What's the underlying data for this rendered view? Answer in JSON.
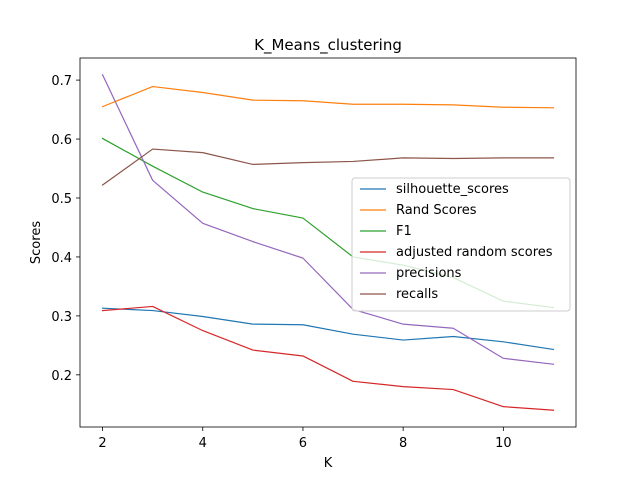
{
  "chart_data": {
    "type": "line",
    "title": "K_Means_clustering",
    "xlabel": "K",
    "ylabel": "Scores",
    "xlim": [
      1.55,
      11.45
    ],
    "ylim": [
      0.1115,
      0.7375
    ],
    "xticks": [
      2,
      4,
      6,
      8,
      10
    ],
    "yticks": [
      0.2,
      0.3,
      0.4,
      0.5,
      0.6,
      0.7
    ],
    "xtick_labels": [
      "2",
      "4",
      "6",
      "8",
      "10"
    ],
    "ytick_labels": [
      "0.2",
      "0.3",
      "0.4",
      "0.5",
      "0.6",
      "0.7"
    ],
    "grid": false,
    "legend_position": "center-right",
    "x": [
      2,
      3,
      4,
      5,
      6,
      7,
      8,
      9,
      10,
      11
    ],
    "series": [
      {
        "name": "silhouette_scores",
        "color": "#1f77b4",
        "values": [
          0.313,
          0.309,
          0.299,
          0.286,
          0.285,
          0.269,
          0.259,
          0.265,
          0.256,
          0.243
        ]
      },
      {
        "name": "Rand Scores",
        "color": "#ff7f0e",
        "values": [
          0.655,
          0.689,
          0.679,
          0.666,
          0.665,
          0.659,
          0.659,
          0.658,
          0.654,
          0.653
        ]
      },
      {
        "name": "F1",
        "color": "#2ca02c",
        "values": [
          0.601,
          0.554,
          0.51,
          0.482,
          0.466,
          0.4,
          0.386,
          0.365,
          0.325,
          0.314
        ]
      },
      {
        "name": "adjusted random scores",
        "color": "#d62728",
        "values": [
          0.309,
          0.316,
          0.275,
          0.242,
          0.232,
          0.189,
          0.18,
          0.175,
          0.146,
          0.14
        ]
      },
      {
        "name": "precisions",
        "color": "#9467bd",
        "values": [
          0.709,
          0.53,
          0.457,
          0.426,
          0.398,
          0.311,
          0.286,
          0.279,
          0.228,
          0.218
        ]
      },
      {
        "name": "recalls",
        "color": "#8c564b",
        "values": [
          0.522,
          0.583,
          0.577,
          0.557,
          0.56,
          0.562,
          0.568,
          0.567,
          0.568,
          0.568
        ]
      }
    ]
  }
}
